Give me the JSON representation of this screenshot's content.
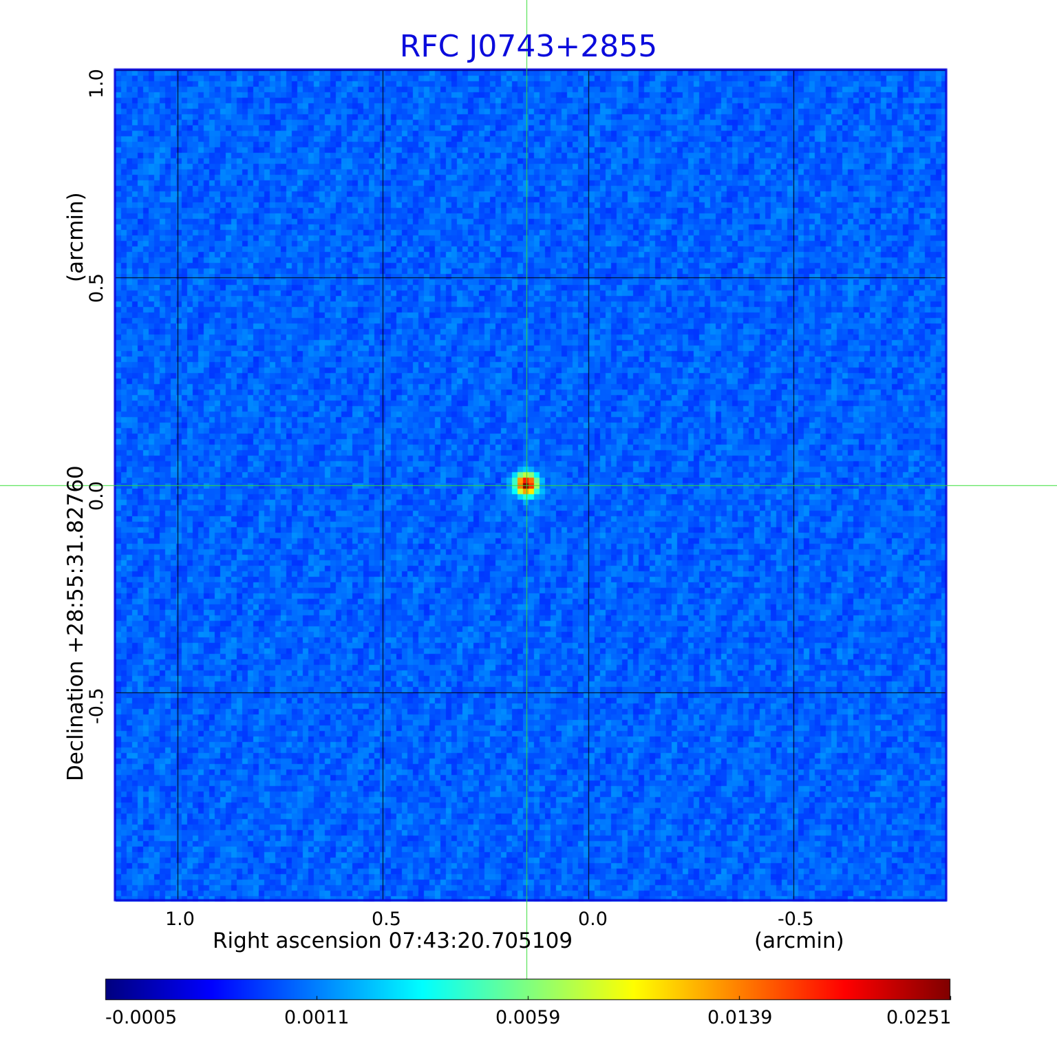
{
  "chart_data": {
    "type": "heatmap",
    "title": "RFC J0743+2855",
    "xlabel": "Right ascension  07:43:20.705109",
    "xunit": "(arcmin)",
    "ylabel": "Declination  +28:55:31.82760",
    "yunit": "(arcmin)",
    "x_ticks": [
      "1.0",
      "0.5",
      "0.0",
      "-0.5"
    ],
    "y_ticks": [
      "1.0",
      "0.5",
      "0.0",
      "-0.5"
    ],
    "xlim": [
      1.15,
      -0.87
    ],
    "ylim": [
      -1.0,
      1.0
    ],
    "grid": true,
    "crosshair": {
      "x": 0.15,
      "y": 0.0
    },
    "peak": {
      "x": 0.15,
      "y": 0.0,
      "value": 0.0251
    },
    "colorbar": {
      "ticks": [
        "-0.0005",
        "0.0011",
        "0.0059",
        "0.0139",
        "0.0251"
      ],
      "colormap": "jet"
    },
    "colors": {
      "title": "#0b0bdc",
      "frame": "#0b0bdc",
      "crosshair": "#33dd33",
      "background_field": "#1e5cf0"
    }
  }
}
